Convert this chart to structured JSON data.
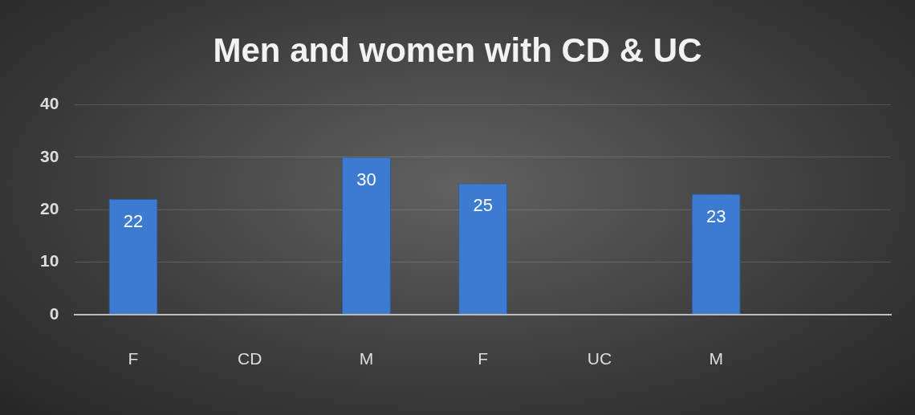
{
  "chart_data": {
    "type": "bar",
    "title": "Men and women with CD & UC",
    "categories": [
      "F",
      "CD",
      "M",
      "F",
      "UC",
      "M",
      null
    ],
    "values": [
      22,
      null,
      30,
      25,
      null,
      23,
      null
    ],
    "color": "#3d7bd0",
    "ylim": [
      0,
      40
    ],
    "yticks": [
      0,
      10,
      20,
      30,
      40
    ],
    "grid": "y",
    "data_labels": true
  }
}
